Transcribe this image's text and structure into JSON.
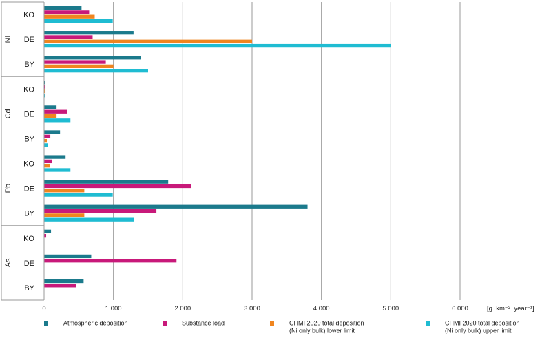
{
  "chart_data": {
    "type": "bar",
    "orientation": "horizontal",
    "title": "",
    "xlabel": "[g. km⁻². year⁻¹]",
    "ylabel": "",
    "xlim": [
      0,
      6000
    ],
    "xticks": [
      0,
      1000,
      2000,
      3000,
      4000,
      5000,
      6000
    ],
    "xtick_labels": [
      "0",
      "1 000",
      "2 000",
      "3 000",
      "4 000",
      "5 000",
      "6 000"
    ],
    "grid": true,
    "legend_position": "bottom",
    "groups": [
      {
        "name": "Ni",
        "categories": [
          "KO",
          "DE",
          "BY"
        ]
      },
      {
        "name": "Cd",
        "categories": [
          "KO",
          "DE",
          "BY"
        ]
      },
      {
        "name": "Pb",
        "categories": [
          "KO",
          "DE",
          "BY"
        ]
      },
      {
        "name": "As",
        "categories": [
          "KO",
          "DE",
          "BY"
        ]
      }
    ],
    "series": [
      {
        "name": "Atmospheric deposition",
        "color": "#1b7a8c",
        "values": [
          540,
          1290,
          1400,
          10,
          180,
          230,
          310,
          1790,
          3800,
          100,
          680,
          570
        ]
      },
      {
        "name": "Substance load",
        "color": "#c8197a",
        "values": [
          650,
          700,
          890,
          10,
          330,
          90,
          110,
          2120,
          1620,
          30,
          1910,
          460
        ]
      },
      {
        "name": "CHMI 2020 total deposition\n(Ni only bulk) lower limit",
        "color": "#f0851f",
        "values": [
          730,
          3000,
          1000,
          10,
          180,
          40,
          80,
          580,
          580,
          null,
          null,
          null
        ]
      },
      {
        "name": "CHMI 2020 total deposition\n(Ni only bulk) upper limit",
        "color": "#1fbcd2",
        "values": [
          990,
          5000,
          1500,
          10,
          380,
          50,
          380,
          990,
          1300,
          null,
          null,
          null
        ]
      }
    ]
  }
}
